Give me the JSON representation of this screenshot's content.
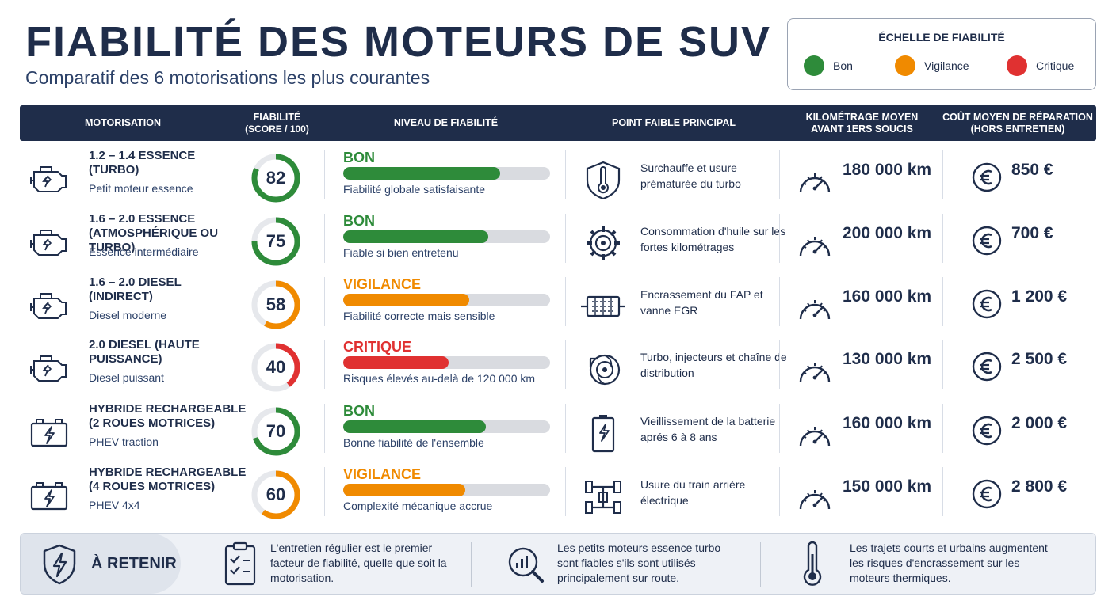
{
  "header": {
    "title": "FIABILITÉ DES MOTEURS DE SUV",
    "subtitle": "Comparatif des 6 motorisations les plus courantes"
  },
  "legend": {
    "title": "ÉCHELLE DE FIABILITÉ",
    "items": [
      {
        "label": "Bon",
        "color": "#2e8b3a"
      },
      {
        "label": "Vigilance",
        "color": "#f08a00"
      },
      {
        "label": "Critique",
        "color": "#e03131"
      }
    ]
  },
  "table": {
    "headers": {
      "motorisation": "MOTORISATION",
      "fiabilite_l1": "FIABILITÉ",
      "fiabilite_l2": "(SCORE / 100)",
      "niveau": "NIVEAU DE FIABILITÉ",
      "point_faible": "POINT FAIBLE PRINCIPAL",
      "km_l1": "KILOMÉTRAGE MOYEN",
      "km_l2": "AVANT 1ERS SOUCIS",
      "cout_l1": "COÛT MOYEN DE RÉPARATION",
      "cout_l2": "(HORS ENTRETIEN)"
    },
    "rows": [
      {
        "name": "1.2 – 1.4 ESSENCE (TURBO)",
        "sub": "Petit moteur essence",
        "engine_icon": "engine-icon",
        "score": 82,
        "score_text": "82",
        "level": "BON",
        "level_color": "#2e8b3a",
        "bar_fraction": 0.76,
        "level_desc": "Fiabilité globale satisfaisante",
        "weak_icon": "thermometer-shield-icon",
        "weak_point": "Surchauffe et usure prématurée du turbo",
        "km": "180 000 km",
        "cost": "850 €"
      },
      {
        "name": "1.6 – 2.0 ESSENCE (ATMOSPHÉRIQUE OU TURBO)",
        "sub": "Essence intermédiaire",
        "engine_icon": "engine-icon",
        "score": 75,
        "score_text": "75",
        "level": "BON",
        "level_color": "#2e8b3a",
        "bar_fraction": 0.7,
        "level_desc": "Fiable si bien entretenu",
        "weak_icon": "gear-icon",
        "weak_point": "Consommation d'huile sur les fortes kilométrages",
        "km": "200 000 km",
        "cost": "700 €"
      },
      {
        "name": "1.6 – 2.0 DIESEL (INDIRECT)",
        "sub": "Diesel moderne",
        "engine_icon": "engine-icon",
        "score": 58,
        "score_text": "58",
        "level": "VIGILANCE",
        "level_color": "#f08a00",
        "bar_fraction": 0.61,
        "level_desc": "Fiabilité correcte mais sensible",
        "weak_icon": "particle-filter-icon",
        "weak_point": "Encrassement du FAP et vanne EGR",
        "km": "160 000 km",
        "cost": "1 200 €"
      },
      {
        "name": "2.0 DIESEL (HAUTE PUISSANCE)",
        "sub": "Diesel puissant",
        "engine_icon": "engine-icon",
        "score": 40,
        "score_text": "40",
        "level": "CRITIQUE",
        "level_color": "#e03131",
        "bar_fraction": 0.51,
        "level_desc": "Risques élevés au-delà de 120 000 km",
        "weak_icon": "turbo-icon",
        "weak_point": "Turbo, injecteurs et chaîne de distribution",
        "km": "130 000 km",
        "cost": "2 500 €"
      },
      {
        "name": "HYBRIDE RECHARGEABLE (2 ROUES MOTRICES)",
        "sub": "PHEV traction",
        "engine_icon": "battery-icon",
        "score": 70,
        "score_text": "70",
        "level": "BON",
        "level_color": "#2e8b3a",
        "bar_fraction": 0.69,
        "level_desc": "Bonne fiabilité de l'ensemble",
        "weak_icon": "battery-cell-icon",
        "weak_point": "Vieillissement de la batterie aprés 6 à 8 ans",
        "km": "160 000 km",
        "cost": "2 000 €"
      },
      {
        "name": "HYBRIDE RECHARGEABLE (4 ROUES MOTRICES)",
        "sub": "PHEV 4x4",
        "engine_icon": "battery-icon",
        "score": 60,
        "score_text": "60",
        "level": "VIGILANCE",
        "level_color": "#f08a00",
        "bar_fraction": 0.59,
        "level_desc": "Complexité mécanique accrue",
        "weak_icon": "drivetrain-icon",
        "weak_point": "Usure du train arrière électrique",
        "km": "150 000 km",
        "cost": "2 800 €"
      }
    ]
  },
  "footer": {
    "label": "À RETENIR",
    "tips": [
      {
        "icon": "clipboard-check-icon",
        "text": "L'entretien régulier est le premier facteur de fiabilité, quelle que soit la motorisation."
      },
      {
        "icon": "magnifier-chart-icon",
        "text": "Les petits moteurs essence turbo sont fiables s'ils sont utilisés principalement sur route."
      },
      {
        "icon": "thermometer-icon",
        "text": "Les trajets courts et urbains augmentent les risques d'encrassement sur les moteurs thermiques."
      }
    ]
  }
}
